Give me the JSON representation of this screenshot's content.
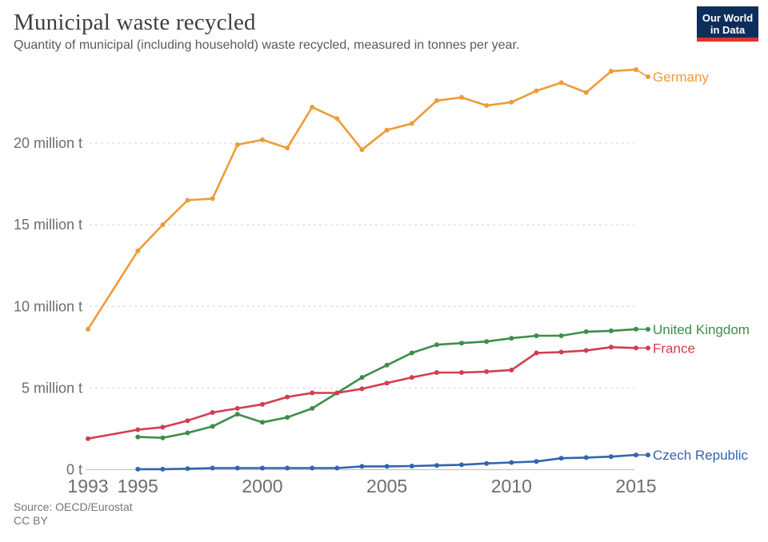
{
  "header": {
    "title": "Municipal waste recycled",
    "subtitle": "Quantity of municipal (including household) waste recycled, measured in tonnes per year.",
    "logo": {
      "line1": "Our World",
      "line2": "in Data",
      "bg_color": "#0d2e5a",
      "stripe_color": "#dc352f"
    }
  },
  "footer": {
    "source": "Source: OECD/Eurostat",
    "license": "CC BY"
  },
  "chart_data": {
    "type": "line",
    "title": "Municipal waste recycled",
    "xlabel": "",
    "ylabel": "",
    "unit": "million tonnes per year",
    "xlim": [
      1993,
      2015
    ],
    "ylim": [
      0,
      25.3
    ],
    "grid": "horizontal-dashed",
    "legend_position": "line-end-labels",
    "x_ticks": [
      1993,
      1995,
      2000,
      2005,
      2010,
      2015
    ],
    "y_ticks": [
      {
        "value": 0,
        "label": "0 t"
      },
      {
        "value": 5,
        "label": "5 million t"
      },
      {
        "value": 10,
        "label": "10 million t"
      },
      {
        "value": 15,
        "label": "15 million t"
      },
      {
        "value": 20,
        "label": "20 million t"
      }
    ],
    "series": [
      {
        "name": "Germany",
        "color": "#ef9b39",
        "years": [
          1993,
          1995,
          1996,
          1997,
          1998,
          1999,
          2000,
          2001,
          2002,
          2003,
          2004,
          2005,
          2006,
          2007,
          2008,
          2009,
          2010,
          2011,
          2012,
          2013,
          2014,
          2015
        ],
        "values": [
          8.6,
          13.4,
          15.0,
          16.5,
          16.6,
          19.9,
          20.2,
          19.7,
          22.2,
          21.5,
          19.6,
          20.8,
          21.2,
          22.6,
          22.8,
          22.3,
          22.5,
          23.2,
          23.7,
          23.1,
          24.4,
          24.5
        ]
      },
      {
        "name": "United Kingdom",
        "color": "#3e8d4a",
        "years": [
          1995,
          1996,
          1997,
          1998,
          1999,
          2000,
          2001,
          2002,
          2003,
          2004,
          2005,
          2006,
          2007,
          2008,
          2009,
          2010,
          2011,
          2012,
          2013,
          2014,
          2015
        ],
        "values": [
          2.0,
          1.95,
          2.25,
          2.65,
          3.4,
          2.9,
          3.2,
          3.75,
          4.7,
          5.65,
          6.4,
          7.15,
          7.65,
          7.75,
          7.85,
          8.05,
          8.2,
          8.2,
          8.45,
          8.5,
          8.6
        ]
      },
      {
        "name": "France",
        "color": "#d23e4e",
        "years": [
          1993,
          1995,
          1996,
          1997,
          1998,
          1999,
          2000,
          2001,
          2002,
          2003,
          2004,
          2005,
          2006,
          2007,
          2008,
          2009,
          2010,
          2011,
          2012,
          2013,
          2014,
          2015
        ],
        "values": [
          1.9,
          2.45,
          2.6,
          3.0,
          3.5,
          3.75,
          4.0,
          4.45,
          4.7,
          4.7,
          4.95,
          5.3,
          5.65,
          5.95,
          5.95,
          6.0,
          6.1,
          7.15,
          7.2,
          7.3,
          7.5,
          7.45
        ]
      },
      {
        "name": "Czech Republic",
        "color": "#3464ae",
        "years": [
          1995,
          1996,
          1997,
          1998,
          1999,
          2000,
          2001,
          2002,
          2003,
          2004,
          2005,
          2006,
          2007,
          2008,
          2009,
          2010,
          2011,
          2012,
          2013,
          2014,
          2015
        ],
        "values": [
          0.03,
          0.03,
          0.06,
          0.1,
          0.1,
          0.1,
          0.1,
          0.1,
          0.1,
          0.2,
          0.2,
          0.22,
          0.26,
          0.3,
          0.38,
          0.44,
          0.5,
          0.7,
          0.74,
          0.8,
          0.9
        ]
      }
    ]
  }
}
